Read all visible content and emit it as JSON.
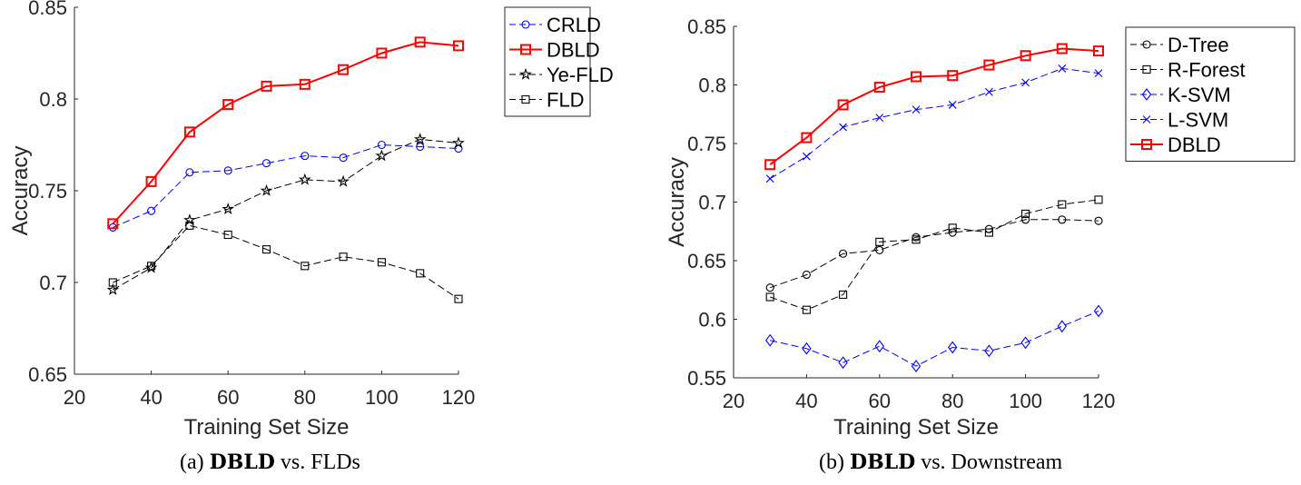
{
  "chart_data": [
    {
      "type": "line",
      "xlabel": "Training Set Size",
      "ylabel": "Accuracy",
      "xlim": [
        20,
        120
      ],
      "ylim": [
        0.65,
        0.85
      ],
      "xticks": [
        20,
        40,
        60,
        80,
        100,
        120
      ],
      "yticks": [
        0.65,
        0.7,
        0.75,
        0.8,
        0.85
      ],
      "ytick_labels": [
        "0.65",
        "0.7",
        "0.75",
        "0.8",
        "0.85"
      ],
      "legend_placement": "outside-top-right",
      "grid": false,
      "x": [
        30,
        40,
        50,
        60,
        70,
        80,
        90,
        100,
        110,
        120
      ],
      "series": [
        {
          "name": "CRLD",
          "color": "#0000ff",
          "marker": "circle",
          "dash": true,
          "values": [
            0.73,
            0.739,
            0.76,
            0.761,
            0.765,
            0.769,
            0.768,
            0.775,
            0.774,
            0.773
          ]
        },
        {
          "name": "DBLD",
          "color": "#ff0000",
          "marker": "square",
          "dash": false,
          "values": [
            0.732,
            0.755,
            0.782,
            0.797,
            0.807,
            0.808,
            0.816,
            0.825,
            0.831,
            0.829
          ]
        },
        {
          "name": "Ye-FLD",
          "color": "#000000",
          "marker": "star",
          "dash": true,
          "values": [
            0.696,
            0.708,
            0.734,
            0.74,
            0.75,
            0.756,
            0.755,
            0.769,
            0.778,
            0.776
          ]
        },
        {
          "name": "FLD",
          "color": "#000000",
          "marker": "square",
          "dash": true,
          "values": [
            0.7,
            0.709,
            0.731,
            0.726,
            0.718,
            0.709,
            0.714,
            0.711,
            0.705,
            0.691
          ]
        }
      ],
      "caption": {
        "prefix": "(a) ",
        "bold": "DBLD",
        "suffix": " vs. FLDs"
      }
    },
    {
      "type": "line",
      "xlabel": "Training Set Size",
      "ylabel": "Accuracy",
      "xlim": [
        20,
        120
      ],
      "ylim": [
        0.55,
        0.85
      ],
      "xticks": [
        20,
        40,
        60,
        80,
        100,
        120
      ],
      "yticks": [
        0.55,
        0.6,
        0.65,
        0.7,
        0.75,
        0.8,
        0.85
      ],
      "ytick_labels": [
        "0.55",
        "0.6",
        "0.65",
        "0.7",
        "0.75",
        "0.8",
        "0.85"
      ],
      "legend_placement": "outside-top-right",
      "grid": false,
      "x": [
        30,
        40,
        50,
        60,
        70,
        80,
        90,
        100,
        110,
        120
      ],
      "series": [
        {
          "name": "D-Tree",
          "color": "#000000",
          "marker": "circle",
          "dash": true,
          "values": [
            0.627,
            0.638,
            0.656,
            0.659,
            0.67,
            0.674,
            0.677,
            0.685,
            0.685,
            0.684
          ]
        },
        {
          "name": "R-Forest",
          "color": "#000000",
          "marker": "square",
          "dash": true,
          "values": [
            0.619,
            0.608,
            0.621,
            0.666,
            0.668,
            0.678,
            0.674,
            0.69,
            0.698,
            0.702
          ]
        },
        {
          "name": "K-SVM",
          "color": "#0000ff",
          "marker": "diamond",
          "dash": true,
          "values": [
            0.582,
            0.575,
            0.563,
            0.577,
            0.56,
            0.576,
            0.573,
            0.58,
            0.594,
            0.607
          ]
        },
        {
          "name": "L-SVM",
          "color": "#0000ff",
          "marker": "x",
          "dash": true,
          "values": [
            0.72,
            0.739,
            0.764,
            0.772,
            0.779,
            0.783,
            0.794,
            0.802,
            0.814,
            0.81
          ]
        },
        {
          "name": "DBLD",
          "color": "#ff0000",
          "marker": "square",
          "dash": false,
          "values": [
            0.732,
            0.755,
            0.783,
            0.798,
            0.807,
            0.808,
            0.817,
            0.825,
            0.831,
            0.829
          ]
        }
      ],
      "caption": {
        "prefix": "(b) ",
        "bold": "DBLD",
        "suffix": " vs. Downstream"
      }
    }
  ]
}
